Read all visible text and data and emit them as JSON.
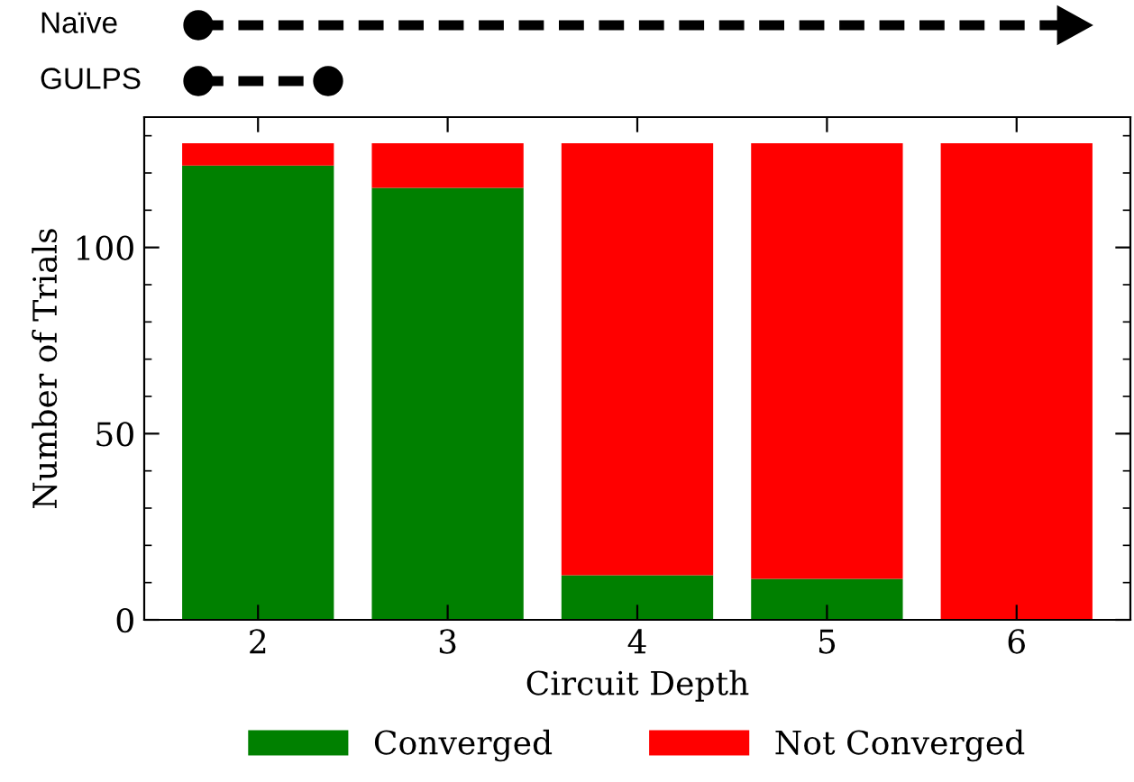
{
  "chart_data": {
    "type": "bar",
    "stacked": true,
    "categories": [
      "2",
      "3",
      "4",
      "5",
      "6"
    ],
    "series": [
      {
        "name": "Converged",
        "color": "#008000",
        "values": [
          122,
          116,
          12,
          11,
          0
        ]
      },
      {
        "name": "Not Converged",
        "color": "#ff0000",
        "values": [
          6,
          12,
          116,
          117,
          128
        ]
      }
    ],
    "xlabel": "Circuit Depth",
    "ylabel": "Number of Trials",
    "ylim": [
      0,
      135
    ],
    "yticks": [
      0,
      50,
      100
    ],
    "legend": "bottom",
    "grid": false,
    "annotations": [
      "Naïve",
      "GULPS"
    ]
  }
}
